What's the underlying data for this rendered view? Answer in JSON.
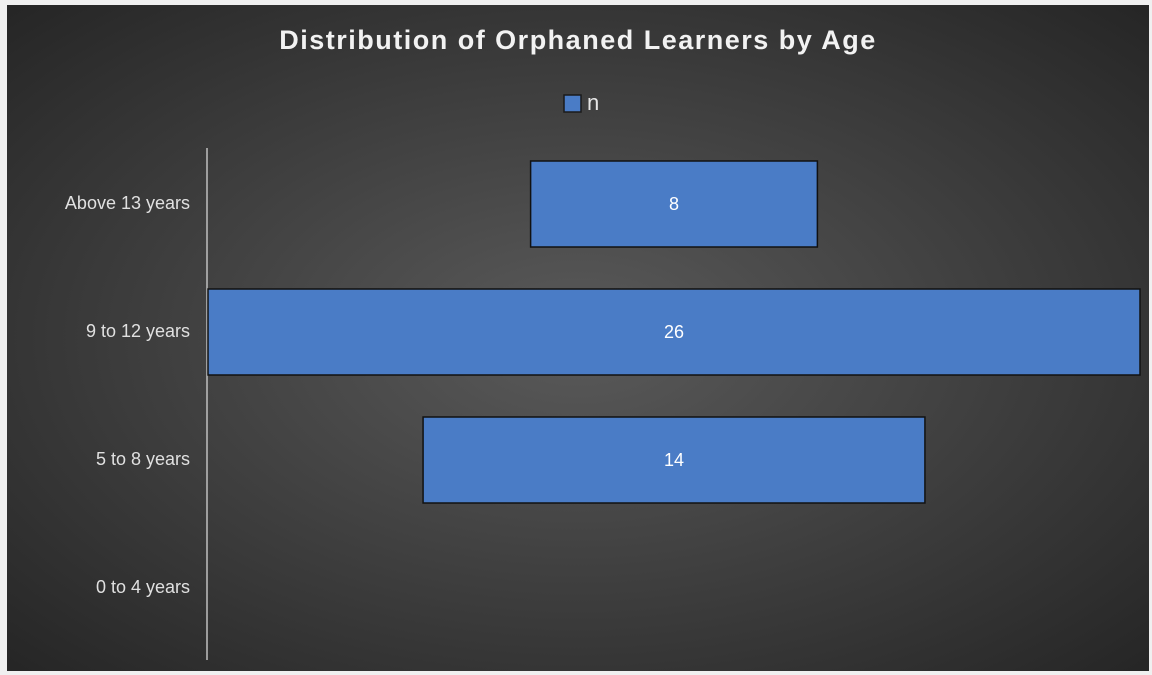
{
  "chart_data": {
    "type": "funnel",
    "title": "Distribution of Orphaned Learners by Age",
    "categories": [
      "Above 13 years",
      "9 to 12 years",
      "5 to 8 years",
      "0 to 4 years"
    ],
    "series": [
      {
        "name": "n",
        "color": "#4a7cc6",
        "values": [
          8,
          26,
          14,
          null
        ]
      }
    ],
    "legend": "top"
  }
}
